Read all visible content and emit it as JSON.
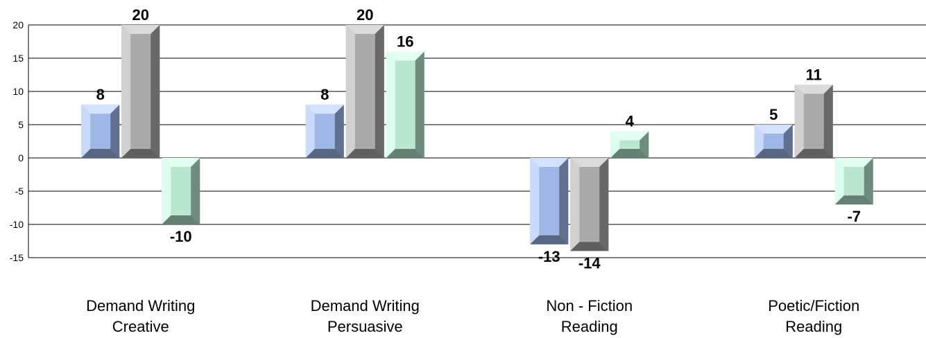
{
  "chart_data": {
    "type": "bar",
    "categories": [
      [
        "Demand Writing",
        "Creative"
      ],
      [
        "Demand Writing",
        "Persuasive"
      ],
      [
        "Non - Fiction",
        "Reading"
      ],
      [
        "Poetic/Fiction",
        "Reading"
      ]
    ],
    "series": [
      {
        "values": [
          8,
          8,
          -13,
          5
        ],
        "color": "#b0cbff"
      },
      {
        "values": [
          20,
          20,
          -14,
          11
        ],
        "color": "#bdbdbd"
      },
      {
        "values": [
          -10,
          16,
          4,
          -7
        ],
        "color": "#ccffe6"
      }
    ],
    "ylim": [
      -15,
      20
    ],
    "yticks": [
      20,
      15,
      10,
      5,
      0,
      -5,
      -10,
      -15
    ],
    "grid": true,
    "style": "3d-beveled"
  }
}
